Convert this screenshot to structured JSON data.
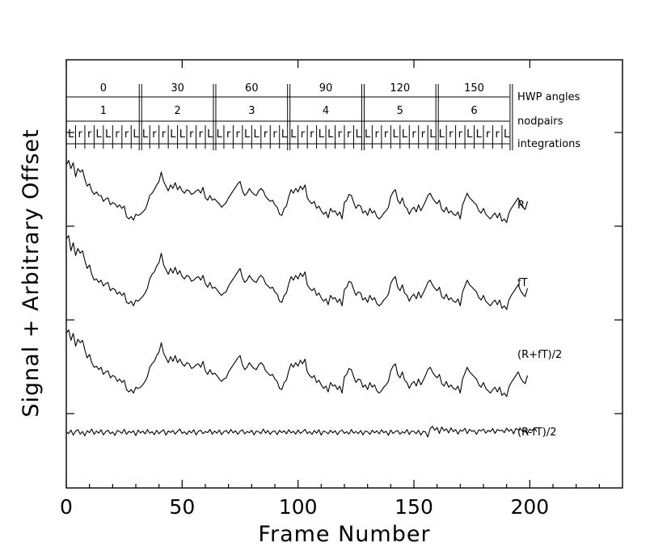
{
  "chart_data": {
    "type": "line",
    "xlabel": "Frame Number",
    "ylabel": "Signal + Arbitrary Offset",
    "xlim": [
      0,
      240
    ],
    "x_ticks": [
      0,
      50,
      100,
      150,
      200
    ],
    "grid": false,
    "header_rows": {
      "hwp_angles": {
        "label": "HWP angles",
        "values": [
          "0",
          "30",
          "60",
          "90",
          "120",
          "150"
        ]
      },
      "nodpairs": {
        "label": "nodpairs",
        "values": [
          "1",
          "2",
          "3",
          "4",
          "5",
          "6"
        ]
      },
      "integrations": {
        "label": "integrations",
        "pattern": [
          "L",
          "r",
          "r",
          "L"
        ]
      }
    },
    "series": [
      {
        "name": "R",
        "values": [
          66,
          70,
          63,
          68,
          56,
          63,
          60,
          62,
          54,
          48,
          50,
          44,
          41,
          43,
          40,
          40,
          35,
          37,
          38,
          32,
          34,
          33,
          30,
          32,
          29,
          31,
          22,
          20,
          22,
          19,
          24,
          23,
          24,
          26,
          28,
          33,
          40,
          42,
          45,
          49,
          52,
          60,
          52,
          48,
          44,
          49,
          46,
          51,
          45,
          48,
          44,
          42,
          45,
          44,
          41,
          42,
          44,
          45,
          42,
          47,
          38,
          36,
          40,
          36,
          37,
          35,
          33,
          30,
          32,
          34,
          38,
          41,
          44,
          47,
          50,
          52,
          44,
          40,
          42,
          46,
          43,
          41,
          40,
          44,
          46,
          44,
          39,
          37,
          35,
          36,
          32,
          30,
          24,
          23,
          29,
          31,
          39,
          45,
          42,
          46,
          43,
          48,
          45,
          49,
          38,
          35,
          33,
          35,
          29,
          31,
          27,
          24,
          26,
          21,
          29,
          26,
          27,
          23,
          26,
          20,
          34,
          36,
          41,
          40,
          34,
          29,
          32,
          31,
          25,
          27,
          23,
          29,
          25,
          27,
          22,
          20,
          22,
          25,
          27,
          30,
          39,
          43,
          45,
          36,
          33,
          38,
          31,
          29,
          24,
          28,
          30,
          26,
          32,
          27,
          31,
          35,
          40,
          42,
          38,
          35,
          33,
          36,
          28,
          26,
          30,
          25,
          27,
          24,
          23,
          26,
          20,
          32,
          37,
          42,
          38,
          36,
          34,
          32,
          27,
          25,
          29,
          24,
          22,
          20,
          23,
          25,
          21,
          25,
          18,
          20,
          17,
          25,
          29,
          32,
          35,
          38,
          33,
          30,
          28,
          35
        ]
      },
      {
        "name": "fT",
        "values": [
          80,
          83,
          70,
          77,
          66,
          72,
          68,
          70,
          62,
          55,
          58,
          50,
          45,
          46,
          43,
          45,
          40,
          42,
          43,
          36,
          38,
          37,
          33,
          35,
          32,
          34,
          26,
          25,
          27,
          23,
          28,
          27,
          29,
          31,
          34,
          38,
          46,
          50,
          52,
          57,
          60,
          68,
          58,
          54,
          50,
          55,
          51,
          56,
          50,
          53,
          48,
          46,
          49,
          48,
          44,
          45,
          47,
          48,
          45,
          49,
          42,
          39,
          43,
          38,
          39,
          37,
          34,
          32,
          34,
          35,
          40,
          43,
          46,
          49,
          52,
          55,
          47,
          43,
          45,
          49,
          46,
          44,
          43,
          47,
          49,
          47,
          42,
          40,
          38,
          39,
          35,
          33,
          27,
          26,
          32,
          34,
          42,
          48,
          45,
          49,
          46,
          51,
          48,
          52,
          41,
          38,
          36,
          38,
          32,
          34,
          30,
          27,
          29,
          24,
          32,
          29,
          30,
          26,
          29,
          23,
          37,
          39,
          44,
          43,
          37,
          32,
          35,
          34,
          28,
          30,
          26,
          32,
          28,
          30,
          25,
          23,
          25,
          28,
          30,
          33,
          42,
          46,
          48,
          39,
          36,
          41,
          34,
          32,
          27,
          31,
          33,
          29,
          35,
          30,
          34,
          38,
          43,
          45,
          41,
          38,
          36,
          39,
          31,
          29,
          33,
          28,
          30,
          27,
          26,
          29,
          23,
          35,
          40,
          45,
          41,
          39,
          37,
          35,
          30,
          28,
          32,
          27,
          25,
          23,
          26,
          28,
          24,
          28,
          21,
          23,
          20,
          28,
          32,
          35,
          38,
          41,
          36,
          33,
          31,
          38
        ]
      },
      {
        "name": "(R+fT)/2",
        "values": [
          72,
          75,
          66,
          72,
          61,
          67,
          64,
          66,
          58,
          51,
          54,
          47,
          43,
          44,
          41,
          43,
          37,
          39,
          40,
          34,
          36,
          35,
          31,
          33,
          30,
          32,
          24,
          22,
          24,
          21,
          26,
          25,
          26,
          28,
          31,
          35,
          43,
          46,
          48,
          53,
          56,
          64,
          55,
          51,
          47,
          52,
          48,
          53,
          47,
          50,
          46,
          44,
          47,
          46,
          42,
          43,
          45,
          46,
          43,
          48,
          40,
          37,
          41,
          37,
          38,
          36,
          33,
          31,
          33,
          34,
          39,
          42,
          45,
          48,
          51,
          53,
          45,
          41,
          43,
          47,
          44,
          42,
          41,
          45,
          47,
          45,
          40,
          38,
          36,
          37,
          33,
          31,
          25,
          24,
          30,
          32,
          40,
          46,
          43,
          47,
          44,
          49,
          46,
          50,
          39,
          36,
          34,
          36,
          30,
          32,
          28,
          25,
          27,
          22,
          30,
          27,
          28,
          24,
          27,
          21,
          35,
          37,
          42,
          41,
          35,
          30,
          33,
          32,
          26,
          28,
          24,
          30,
          26,
          28,
          23,
          21,
          23,
          26,
          28,
          31,
          40,
          44,
          46,
          37,
          34,
          39,
          32,
          30,
          25,
          29,
          31,
          27,
          33,
          28,
          32,
          36,
          41,
          43,
          39,
          36,
          34,
          37,
          29,
          27,
          31,
          26,
          28,
          25,
          24,
          27,
          21,
          33,
          38,
          43,
          39,
          37,
          35,
          33,
          28,
          26,
          30,
          25,
          23,
          21,
          24,
          26,
          22,
          26,
          19,
          21,
          18,
          26,
          30,
          33,
          36,
          39,
          34,
          31,
          29,
          36
        ]
      },
      {
        "name": "(R-fT)/2",
        "values": [
          0.2,
          -0.6,
          0.9,
          -1.2,
          0.4,
          1.1,
          -0.8,
          0.3,
          -1.5,
          0.6,
          -0.2,
          1.3,
          -0.9,
          0.5,
          -0.4,
          1.0,
          -1.1,
          0.2,
          0.8,
          -0.6,
          0.1,
          -1.3,
          0.7,
          0.3,
          -0.5,
          1.2,
          -0.9,
          0.4,
          -0.2,
          0.6,
          -1.4,
          0.9,
          -0.3,
          0.5,
          -0.7,
          1.1,
          -0.4,
          0.2,
          -1.0,
          0.8,
          -0.6,
          0.3,
          1.0,
          -1.2,
          0.5,
          -0.1,
          0.7,
          -0.8,
          0.4,
          1.3,
          -0.5,
          0.2,
          -0.9,
          0.6,
          -0.3,
          1.0,
          -1.1,
          0.4,
          0.8,
          -0.6,
          0.3,
          -0.2,
          1.2,
          -0.8,
          0.5,
          -0.4,
          0.9,
          -1.0,
          0.2,
          0.7,
          -0.5,
          1.1,
          -0.3,
          0.6,
          -0.9,
          0.4,
          1.0,
          -0.7,
          0.3,
          -0.2,
          0.8,
          -1.1,
          0.5,
          0.2,
          -0.6,
          1.3,
          -0.4,
          0.7,
          -0.9,
          0.3,
          0.5,
          -1.0,
          0.8,
          -0.2,
          0.6,
          -0.7,
          1.0,
          -0.3,
          0.4,
          -0.8,
          0.9,
          -0.5,
          0.2,
          1.2,
          -0.6,
          0.3,
          -0.9,
          0.7,
          -0.4,
          1.0,
          -1.2,
          0.5,
          0.1,
          -0.7,
          0.8,
          -0.3,
          0.6,
          -1.0,
          0.4,
          0.9,
          -0.5,
          0.2,
          -0.8,
          1.1,
          -0.4,
          0.3,
          -0.6,
          0.7,
          -1.1,
          0.5,
          0.2,
          -0.9,
          0.8,
          -0.3,
          0.6,
          -0.7,
          1.0,
          -0.2,
          0.4,
          -1.3,
          0.9,
          -0.5,
          0.3,
          0.7,
          -0.8,
          0.2,
          -0.4,
          1.1,
          -0.9,
          0.5,
          0.3,
          -0.6,
          0.8,
          -1.2,
          0.4,
          0.1,
          -2.0,
          1.5,
          2.4,
          0.8,
          1.9,
          -0.5,
          2.2,
          0.6,
          1.4,
          -0.3,
          1.8,
          0.2,
          1.1,
          -0.8,
          0.9,
          0.4,
          1.6,
          -0.6,
          1.2,
          0.3,
          0.7,
          -0.9,
          1.0,
          0.5,
          1.3,
          -0.4,
          0.8,
          0.2,
          1.5,
          -0.5,
          1.1,
          0.6,
          0.9,
          -0.2,
          1.7,
          0.4,
          1.2,
          -0.7,
          1.6,
          0.9,
          1.4,
          0.3,
          1.0,
          -0.4,
          1.3,
          0.6,
          1.8,
          0.2
        ]
      }
    ]
  }
}
